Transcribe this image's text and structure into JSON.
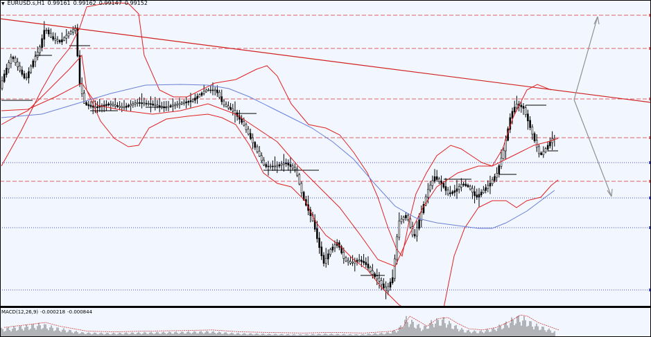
{
  "chart": {
    "symbol_timeframe": "EURUSD.s,H1",
    "ohlc": [
      "0.99161",
      "0.99162",
      "0.99147",
      "0.99152"
    ],
    "indicator_label": "MACD(12,26,9)",
    "indicator_values": [
      "-0.000218",
      "-0.000844"
    ]
  },
  "colors": {
    "background": "#ffffff",
    "plot_area": "#f2f6fe",
    "candles": "#000000",
    "bollinger": "#e02020",
    "moving_average": "#6a7fd8",
    "trendline": "#d02020",
    "red_levels": "#e06060",
    "blue_levels": "#4050c8",
    "projection_arrows": "#909090",
    "macd_hist": "#707070",
    "macd_signal": "#d04040"
  },
  "icons": {
    "dropdown": "triangle-down-icon"
  }
}
